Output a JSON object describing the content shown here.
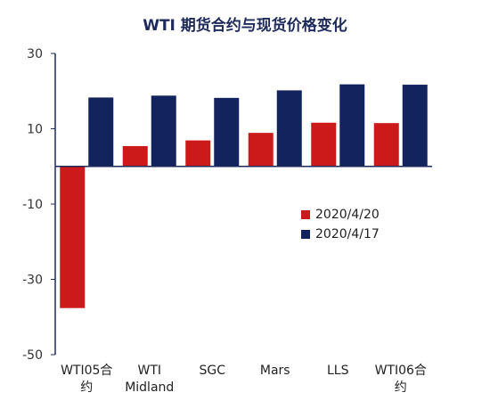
{
  "chart_data": {
    "type": "bar",
    "title": "WTI 期货合约与现货价格变化",
    "categories": [
      [
        "WTI05合",
        "约"
      ],
      [
        "WTI",
        "Midland"
      ],
      [
        "SGC"
      ],
      [
        "Mars"
      ],
      [
        "LLS"
      ],
      [
        "WTI06合",
        "约"
      ]
    ],
    "series": [
      {
        "name": "2020/4/20",
        "color": "#cc1a1a",
        "values": [
          -37.63,
          5.4,
          6.9,
          8.9,
          11.6,
          11.5
        ]
      },
      {
        "name": "2020/4/17",
        "color": "#13235e",
        "values": [
          18.3,
          18.8,
          18.2,
          20.2,
          21.8,
          21.7
        ]
      }
    ],
    "yticks": [
      30,
      10,
      -10,
      -30,
      -50
    ],
    "ylim": [
      -50,
      30
    ],
    "grid": false,
    "legend_position": "middle-right"
  }
}
